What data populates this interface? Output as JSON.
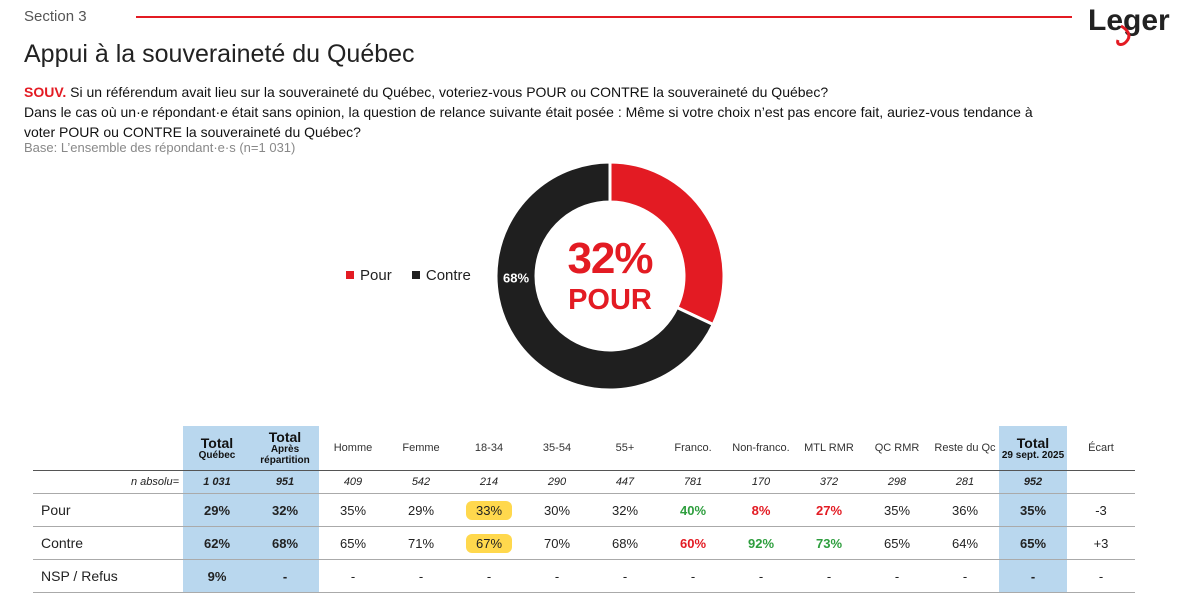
{
  "header": {
    "section": "Section 3",
    "title": "Appui à la souveraineté du Québec",
    "logo_text": "Leger",
    "accent_color": "#e31b23"
  },
  "question": {
    "code": "SOUV.",
    "text1": " Si un référendum avait lieu sur la souveraineté du Québec, voteriez-vous POUR ou CONTRE la souveraineté du Québec?",
    "text2": "Dans le cas où un·e répondant·e était sans opinion, la question de relance suivante était posée : Même si votre choix n’est pas encore fait, auriez-vous tendance à voter POUR ou CONTRE la souveraineté du Québec?",
    "base": "Base: L’ensemble des répondant·e·s (n=1 031)"
  },
  "chart_data": [
    {
      "type": "pie",
      "variant": "donut",
      "categories": [
        "Pour",
        "Contre"
      ],
      "values": [
        32,
        68
      ],
      "colors": [
        "#e31b23",
        "#1f1f1f"
      ],
      "data_labels": [
        "",
        "68%"
      ],
      "center_value": "32%",
      "center_label": "POUR",
      "legend": [
        "Pour",
        "Contre"
      ],
      "legend_position": "left"
    },
    {
      "type": "table",
      "columns": [
        {
          "name": "Total",
          "sub": "Québec"
        },
        {
          "name": "Total",
          "sub": "Après répartition"
        },
        {
          "name": "Homme"
        },
        {
          "name": "Femme"
        },
        {
          "name": "18-34"
        },
        {
          "name": "35-54"
        },
        {
          "name": "55+"
        },
        {
          "name": "Franco."
        },
        {
          "name": "Non-franco."
        },
        {
          "name": "MTL RMR"
        },
        {
          "name": "QC RMR"
        },
        {
          "name": "Reste du Qc"
        },
        {
          "name": "Total",
          "sub": "29 sept. 2025"
        },
        {
          "name": "Écart"
        }
      ],
      "n_label": "n absolu=",
      "n_values": [
        "1 031",
        "951",
        "409",
        "542",
        "214",
        "290",
        "447",
        "781",
        "170",
        "372",
        "298",
        "281",
        "952",
        ""
      ],
      "rows": [
        {
          "label": "Pour",
          "values": [
            "29%",
            "32%",
            "35%",
            "29%",
            "33%",
            "30%",
            "32%",
            "40%",
            "8%",
            "27%",
            "35%",
            "36%",
            "35%",
            "-3"
          ]
        },
        {
          "label": "Contre",
          "values": [
            "62%",
            "68%",
            "65%",
            "71%",
            "67%",
            "70%",
            "68%",
            "60%",
            "92%",
            "73%",
            "65%",
            "64%",
            "65%",
            "+3"
          ]
        },
        {
          "label": "NSP / Refus",
          "values": [
            "9%",
            "-",
            "-",
            "-",
            "-",
            "-",
            "-",
            "-",
            "-",
            "-",
            "-",
            "-",
            "-",
            "-"
          ]
        }
      ],
      "highlight_color": "#b9d7ee",
      "positive_color": "#2e9e3e",
      "negative_color": "#e31b23",
      "marker_color": "#ffd84d"
    }
  ]
}
